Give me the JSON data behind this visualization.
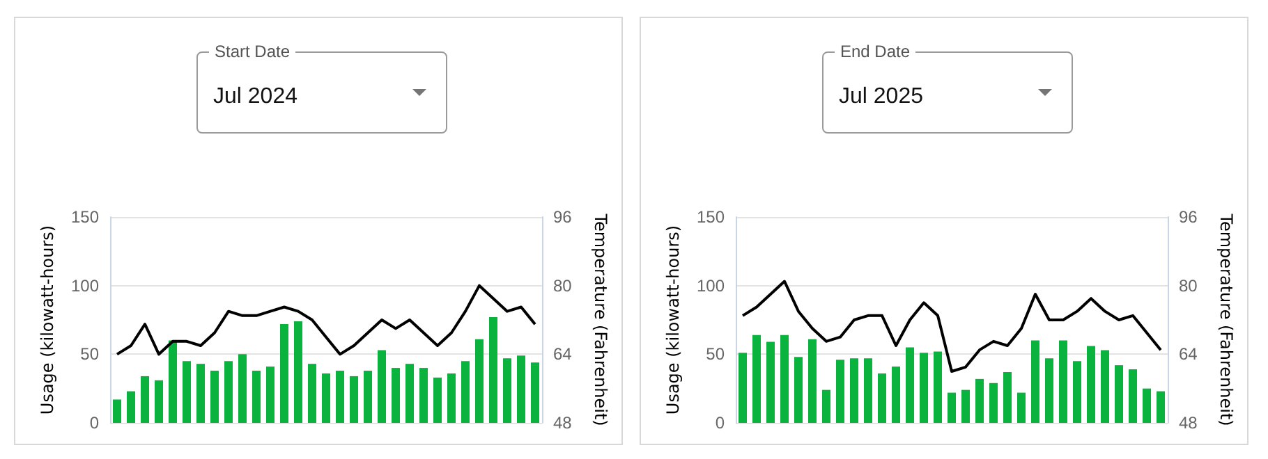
{
  "chart_data": [
    {
      "type": "bar",
      "annotations": [
        "Start Date",
        "Jul 2024"
      ],
      "ylabel": "Usage (kilowatt-hours)",
      "y2label": "Temperature (Fahrenheit)",
      "categories": [
        null,
        null,
        null,
        null,
        null,
        null,
        null,
        null,
        null,
        null,
        null,
        null,
        null,
        null,
        null,
        null,
        null,
        null,
        null,
        null,
        null,
        null,
        null,
        null,
        null,
        null,
        null,
        null,
        null,
        null,
        null
      ],
      "series": [
        {
          "color": "#0ab33d",
          "values": [
            17,
            23,
            34,
            31,
            60,
            45,
            43,
            38,
            45,
            50,
            38,
            41,
            72,
            74,
            43,
            36,
            38,
            34,
            38,
            53,
            40,
            43,
            40,
            33,
            36,
            45,
            61,
            77,
            47,
            49,
            44
          ]
        },
        {
          "type": "line",
          "axis": "y2",
          "color": "#000000",
          "values": [
            64,
            66,
            71,
            64,
            67,
            67,
            66,
            69,
            74,
            73,
            73,
            74,
            75,
            74,
            72,
            68,
            64,
            66,
            69,
            72,
            70,
            72,
            69,
            66,
            69,
            74,
            80,
            77,
            74,
            75,
            71
          ]
        }
      ],
      "ylim": [
        0,
        150
      ],
      "yticks": [
        0,
        50,
        100,
        150
      ],
      "y2lim": [
        48,
        96
      ],
      "y2ticks": [
        48,
        64,
        80,
        96
      ],
      "grid": "y",
      "tick_labels": "y",
      "marker": "none",
      "line_style": "solid"
    },
    {
      "type": "bar",
      "annotations": [
        "End Date",
        "Jul 2025"
      ],
      "ylabel": "Usage (kilowatt-hours)",
      "y2label": "Temperature (Fahrenheit)",
      "categories": [
        null,
        null,
        null,
        null,
        null,
        null,
        null,
        null,
        null,
        null,
        null,
        null,
        null,
        null,
        null,
        null,
        null,
        null,
        null,
        null,
        null,
        null,
        null,
        null,
        null,
        null,
        null,
        null,
        null,
        null,
        null
      ],
      "series": [
        {
          "color": "#0ab33d",
          "values": [
            51,
            64,
            59,
            64,
            48,
            61,
            24,
            46,
            47,
            47,
            36,
            41,
            55,
            51,
            52,
            22,
            24,
            32,
            29,
            37,
            22,
            60,
            47,
            60,
            45,
            56,
            53,
            42,
            39,
            25,
            23
          ]
        },
        {
          "type": "line",
          "axis": "y2",
          "color": "#000000",
          "values": [
            73,
            75,
            78,
            81,
            74,
            70,
            67,
            68,
            72,
            73,
            73,
            66,
            72,
            76,
            73,
            60,
            61,
            65,
            67,
            66,
            70,
            78,
            72,
            72,
            74,
            77,
            74,
            72,
            73,
            69,
            65
          ]
        }
      ],
      "ylim": [
        0,
        150
      ],
      "yticks": [
        0,
        50,
        100,
        150
      ],
      "y2lim": [
        48,
        96
      ],
      "y2ticks": [
        48,
        64,
        80,
        96
      ],
      "grid": "y",
      "tick_labels": "y",
      "marker": "none",
      "line_style": "solid"
    }
  ]
}
